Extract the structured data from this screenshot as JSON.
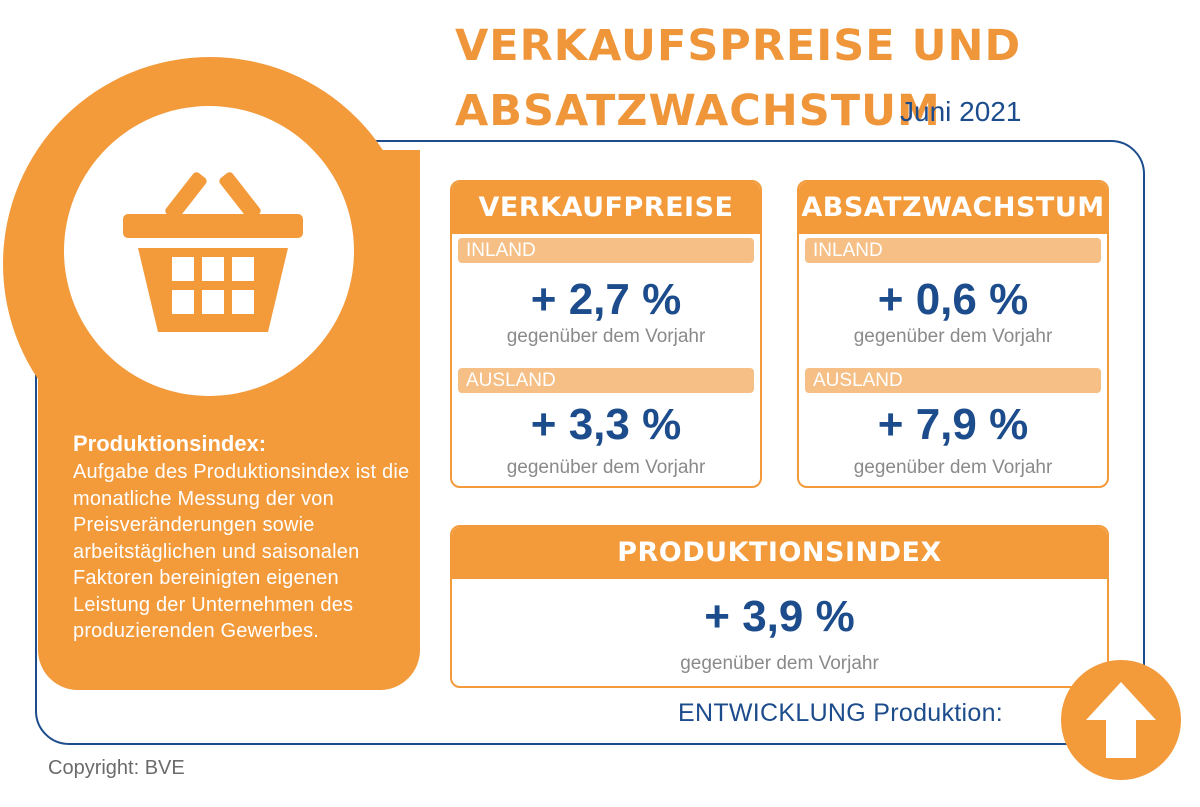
{
  "header": {
    "title_line1": "VERKAUFSPREISE UND",
    "title_line2": "ABSATZWACHSTUM",
    "subtitle": "Juni 2021"
  },
  "info_panel": {
    "heading": "Produktionsindex:",
    "text": "Aufgabe des Produktionsindex ist die monatliche Messung der von Preisveränderungen sowie arbeitstäglichen und saisonalen Faktoren bereinigten eigenen Leistung der Unternehmen des produzierenden Gewerbes.",
    "icon": "shopping-basket-icon"
  },
  "cards": {
    "verkaufpreise": {
      "title": "VERKAUFPREISE",
      "inland_label": "INLAND",
      "inland_value": "+ 2,7 %",
      "inland_note": "gegenüber dem Vorjahr",
      "ausland_label": "AUSLAND",
      "ausland_value": "+ 3,3 %",
      "ausland_note": "gegenüber dem Vorjahr"
    },
    "absatzwachstum": {
      "title": "ABSATZWACHSTUM",
      "inland_label": "INLAND",
      "inland_value": "+ 0,6 %",
      "inland_note": "gegenüber dem Vorjahr",
      "ausland_label": "AUSLAND",
      "ausland_value": "+ 7,9 %",
      "ausland_note": "gegenüber dem Vorjahr"
    },
    "produktionsindex": {
      "title": "PRODUKTIONSINDEX",
      "value": "+ 3,9 %",
      "note": "gegenüber dem Vorjahr"
    }
  },
  "footer": {
    "entwicklung": "ENTWICKLUNG Produktion:",
    "arrow_icon": "arrow-up-icon",
    "copyright": "Copyright: BVE"
  },
  "colors": {
    "orange": "#f39a3b",
    "light_orange": "#f5bf85",
    "blue": "#1c4c8c",
    "grey": "#8a8a8a"
  }
}
